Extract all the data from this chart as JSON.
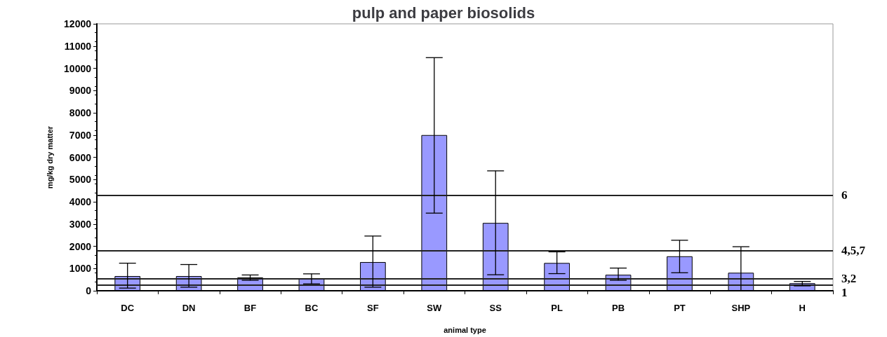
{
  "chart_data": {
    "type": "bar",
    "title": "pulp and paper biosolids",
    "xlabel": "animal type",
    "ylabel": "mg/kg dry matter",
    "categories": [
      "DC",
      "DN",
      "BF",
      "BC",
      "SF",
      "SW",
      "SS",
      "PL",
      "PB",
      "PT",
      "SHP",
      "H"
    ],
    "values": [
      660,
      660,
      600,
      560,
      1290,
      7000,
      3050,
      1250,
      720,
      1550,
      810,
      340
    ],
    "errors": [
      [
        120,
        1240
      ],
      [
        160,
        1180
      ],
      [
        470,
        710
      ],
      [
        310,
        760
      ],
      [
        160,
        2460
      ],
      [
        3490,
        10480
      ],
      [
        720,
        5390
      ],
      [
        770,
        1750
      ],
      [
        470,
        1020
      ],
      [
        810,
        2270
      ],
      [
        0,
        1980
      ],
      [
        220,
        420
      ]
    ],
    "color": "#9999ff",
    "ylim": [
      0,
      12000
    ],
    "yticks": [
      0,
      1000,
      2000,
      3000,
      4000,
      5000,
      6000,
      7000,
      8000,
      9000,
      10000,
      11000,
      12000
    ],
    "ref_lines": [
      {
        "axis": "y",
        "value": 4280
      },
      {
        "axis": "y",
        "value": 1800
      },
      {
        "axis": "y",
        "value": 540
      },
      {
        "axis": "y",
        "value": 260
      }
    ],
    "annotations": [
      "6",
      "4,5,7",
      "3,2",
      "1"
    ],
    "grid": false
  }
}
